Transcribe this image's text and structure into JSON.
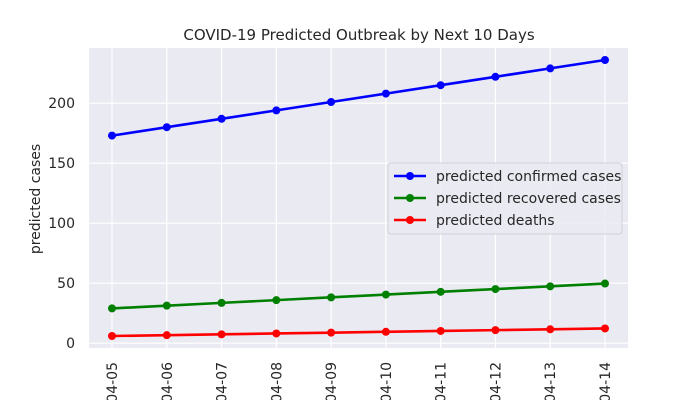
{
  "chart_data": {
    "type": "line",
    "title": "COVID-19 Predicted Outbreak by Next 10 Days",
    "xlabel": "",
    "ylabel": "predicted cases",
    "categories": [
      "04-05",
      "04-06",
      "04-07",
      "04-08",
      "04-09",
      "04-10",
      "04-11",
      "04-12",
      "04-13",
      "04-14"
    ],
    "ylim": [
      -4,
      246
    ],
    "yticks": [
      0,
      50,
      100,
      150,
      200
    ],
    "grid": true,
    "legend_position": "center-right",
    "series": [
      {
        "name": "predicted confirmed cases",
        "color": "#0000ff",
        "values": [
          173,
          180,
          187,
          194,
          201,
          208,
          215,
          222,
          229,
          236
        ]
      },
      {
        "name": "predicted recovered cases",
        "color": "#008000",
        "values": [
          29,
          31.3,
          33.6,
          35.9,
          38.2,
          40.5,
          42.8,
          45.1,
          47.4,
          49.7
        ]
      },
      {
        "name": "predicted deaths",
        "color": "#ff0000",
        "values": [
          6,
          6.7,
          7.4,
          8.1,
          8.8,
          9.5,
          10.2,
          10.9,
          11.6,
          12.3
        ]
      }
    ]
  }
}
